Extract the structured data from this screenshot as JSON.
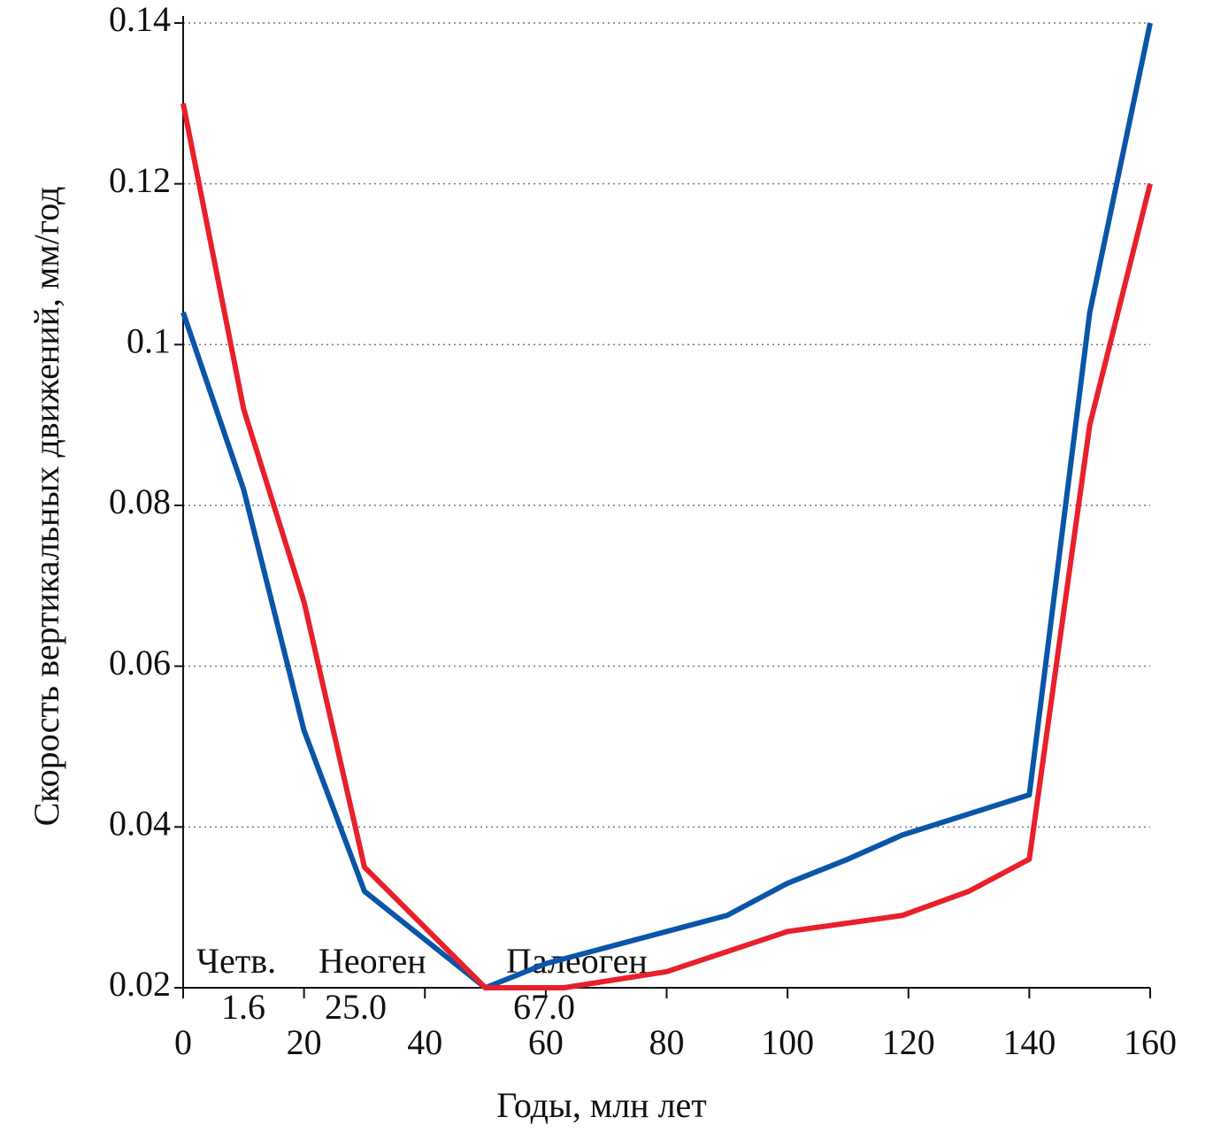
{
  "chart_data": {
    "type": "line",
    "x_label": "Годы, млн лет",
    "y_label": "Скорость вертикальных движений, мм/год",
    "xlim": [
      0,
      160
    ],
    "xticks": [
      0,
      20,
      40,
      60,
      80,
      100,
      120,
      140,
      160
    ],
    "ylim": [
      0.02,
      0.14
    ],
    "yticks": [
      0.02,
      0.04,
      0.06,
      0.08,
      0.1,
      0.12,
      0.14
    ],
    "grid": true,
    "annotations": [
      "Четв.",
      "Неоген",
      "Палеоген",
      "1.6",
      "25.0",
      "67.0"
    ],
    "series": [
      {
        "color": "#0a55a8",
        "x": [
          0,
          10,
          20,
          30,
          50,
          60,
          90,
          100,
          110,
          119,
          140,
          150,
          160
        ],
        "values": [
          0.104,
          0.082,
          0.052,
          0.032,
          0.02,
          0.023,
          0.029,
          0.033,
          0.036,
          0.039,
          0.044,
          0.104,
          0.14
        ]
      },
      {
        "color": "#e8202a",
        "x": [
          0,
          10,
          20,
          30,
          50,
          63,
          80,
          88,
          100,
          119,
          130,
          140,
          150,
          160
        ],
        "values": [
          0.13,
          0.092,
          0.068,
          0.035,
          0.02,
          0.02,
          0.022,
          0.024,
          0.027,
          0.029,
          0.032,
          0.036,
          0.09,
          0.12
        ]
      }
    ]
  }
}
